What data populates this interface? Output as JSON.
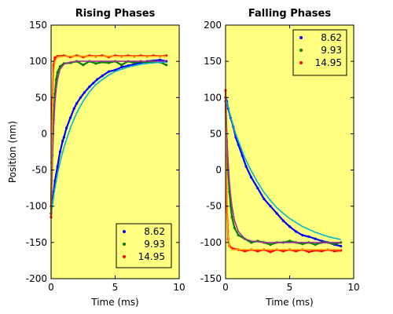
{
  "chart_data": [
    {
      "type": "line",
      "title": "Rising Phases",
      "xlabel": "Time (ms)",
      "ylabel": "Position (nm)",
      "xlim": [
        0,
        10
      ],
      "ylim": [
        -200,
        150
      ],
      "xticks": [
        0,
        5,
        10
      ],
      "yticks": [
        -200,
        -150,
        -100,
        -50,
        0,
        50,
        100,
        150
      ],
      "grid": false,
      "legend_position": "bottom-right",
      "background": "#ffff80",
      "series": [
        {
          "name": "8.62",
          "color": "#0000ff",
          "fit_color": "#00b8c8",
          "points": [
            [
              0,
              -110
            ],
            [
              0.1,
              -95
            ],
            [
              0.2,
              -80
            ],
            [
              0.3,
              -65
            ],
            [
              0.5,
              -45
            ],
            [
              0.7,
              -25
            ],
            [
              0.9,
              -10
            ],
            [
              1.0,
              -5
            ],
            [
              1.2,
              8
            ],
            [
              1.5,
              22
            ],
            [
              1.8,
              35
            ],
            [
              2.0,
              42
            ],
            [
              2.3,
              50
            ],
            [
              2.6,
              57
            ],
            [
              3.0,
              65
            ],
            [
              3.3,
              70
            ],
            [
              3.6,
              75
            ],
            [
              4.0,
              80
            ],
            [
              4.5,
              86
            ],
            [
              5.0,
              88
            ],
            [
              5.5,
              92
            ],
            [
              6.0,
              94
            ],
            [
              6.5,
              96
            ],
            [
              7.0,
              98
            ],
            [
              7.5,
              100
            ],
            [
              8.0,
              101
            ],
            [
              8.5,
              102
            ],
            [
              9.0,
              100
            ]
          ],
          "fit": [
            [
              0,
              -110
            ],
            [
              0.25,
              -80
            ],
            [
              0.5,
              -55
            ],
            [
              0.75,
              -36
            ],
            [
              1.0,
              -19
            ],
            [
              1.5,
              8
            ],
            [
              2.0,
              29
            ],
            [
              2.5,
              45
            ],
            [
              3.0,
              58
            ],
            [
              3.5,
              68
            ],
            [
              4.0,
              75
            ],
            [
              4.5,
              81
            ],
            [
              5.0,
              86
            ],
            [
              6.0,
              92
            ],
            [
              7.0,
              96
            ],
            [
              8.0,
              98
            ],
            [
              9.0,
              99
            ]
          ]
        },
        {
          "name": "9.93",
          "color": "#008000",
          "fit_color": "#a030a0",
          "points": [
            [
              0,
              -100
            ],
            [
              0.1,
              -30
            ],
            [
              0.2,
              20
            ],
            [
              0.3,
              55
            ],
            [
              0.4,
              75
            ],
            [
              0.5,
              85
            ],
            [
              0.7,
              93
            ],
            [
              1.0,
              97
            ],
            [
              1.5,
              98
            ],
            [
              2.0,
              100
            ],
            [
              2.5,
              95
            ],
            [
              3.0,
              100
            ],
            [
              3.5,
              97
            ],
            [
              4.0,
              99
            ],
            [
              4.5,
              98
            ],
            [
              5.0,
              100
            ],
            [
              5.5,
              95
            ],
            [
              6.0,
              100
            ],
            [
              6.5,
              98
            ],
            [
              7.0,
              100
            ],
            [
              7.5,
              98
            ],
            [
              8.0,
              100
            ],
            [
              8.5,
              99
            ],
            [
              9.0,
              95
            ]
          ],
          "fit": [
            [
              0,
              -100
            ],
            [
              0.1,
              -32
            ],
            [
              0.2,
              13
            ],
            [
              0.3,
              43
            ],
            [
              0.4,
              62
            ],
            [
              0.5,
              75
            ],
            [
              0.7,
              89
            ],
            [
              1.0,
              96
            ],
            [
              1.5,
              99
            ],
            [
              2.0,
              100
            ],
            [
              9.0,
              100
            ]
          ]
        },
        {
          "name": "14.95",
          "color": "#ff0000",
          "fit_color": "#ffa000",
          "points": [
            [
              0,
              -115
            ],
            [
              0.05,
              -40
            ],
            [
              0.1,
              40
            ],
            [
              0.2,
              95
            ],
            [
              0.3,
              105
            ],
            [
              0.5,
              107
            ],
            [
              1.0,
              108
            ],
            [
              1.5,
              106
            ],
            [
              2.0,
              108
            ],
            [
              2.5,
              106
            ],
            [
              3.0,
              108
            ],
            [
              3.5,
              107
            ],
            [
              4.0,
              108
            ],
            [
              4.5,
              106
            ],
            [
              5.0,
              108
            ],
            [
              5.5,
              107
            ],
            [
              6.0,
              108
            ],
            [
              6.5,
              107
            ],
            [
              7.0,
              108
            ],
            [
              7.5,
              107
            ],
            [
              8.0,
              108
            ],
            [
              8.5,
              107
            ],
            [
              9.0,
              108
            ]
          ],
          "fit": [
            [
              0,
              -115
            ],
            [
              0.05,
              -25
            ],
            [
              0.1,
              30
            ],
            [
              0.15,
              64
            ],
            [
              0.2,
              84
            ],
            [
              0.3,
              100
            ],
            [
              0.5,
              106
            ],
            [
              1.0,
              107
            ],
            [
              9.0,
              107
            ]
          ]
        }
      ]
    },
    {
      "type": "line",
      "title": "Falling Phases",
      "xlabel": "Time (ms)",
      "ylabel": "",
      "xlim": [
        0,
        10
      ],
      "ylim": [
        -150,
        200
      ],
      "xticks": [
        0,
        5,
        10
      ],
      "yticks": [
        -150,
        -100,
        -50,
        0,
        50,
        100,
        150,
        200
      ],
      "grid": false,
      "legend_position": "top-right",
      "background": "#ffff80",
      "series": [
        {
          "name": "8.62",
          "color": "#0000ff",
          "fit_color": "#00b8c8",
          "points": [
            [
              0,
              100
            ],
            [
              0.1,
              95
            ],
            [
              0.2,
              85
            ],
            [
              0.4,
              72
            ],
            [
              0.6,
              60
            ],
            [
              0.8,
              45
            ],
            [
              1.0,
              35
            ],
            [
              1.3,
              20
            ],
            [
              1.6,
              5
            ],
            [
              2.0,
              -10
            ],
            [
              2.5,
              -25
            ],
            [
              3.0,
              -40
            ],
            [
              3.5,
              -50
            ],
            [
              4.0,
              -60
            ],
            [
              4.5,
              -70
            ],
            [
              5.0,
              -78
            ],
            [
              5.5,
              -85
            ],
            [
              6.0,
              -90
            ],
            [
              6.5,
              -92
            ],
            [
              7.0,
              -95
            ],
            [
              7.5,
              -98
            ],
            [
              8.0,
              -100
            ],
            [
              8.5,
              -103
            ],
            [
              9.0,
              -105
            ]
          ],
          "fit": [
            [
              0,
              100
            ],
            [
              0.25,
              83
            ],
            [
              0.5,
              67
            ],
            [
              0.75,
              52
            ],
            [
              1.0,
              40
            ],
            [
              1.5,
              17
            ],
            [
              2.0,
              -1
            ],
            [
              2.5,
              -17
            ],
            [
              3.0,
              -31
            ],
            [
              3.5,
              -42
            ],
            [
              4.0,
              -52
            ],
            [
              4.5,
              -60
            ],
            [
              5.0,
              -67
            ],
            [
              6.0,
              -78
            ],
            [
              7.0,
              -86
            ],
            [
              8.0,
              -92
            ],
            [
              9.0,
              -96
            ]
          ]
        },
        {
          "name": "9.93",
          "color": "#008000",
          "fit_color": "#a030a0",
          "points": [
            [
              0,
              95
            ],
            [
              0.1,
              40
            ],
            [
              0.2,
              0
            ],
            [
              0.3,
              -30
            ],
            [
              0.4,
              -50
            ],
            [
              0.5,
              -65
            ],
            [
              0.7,
              -80
            ],
            [
              1.0,
              -90
            ],
            [
              1.5,
              -95
            ],
            [
              2.0,
              -100
            ],
            [
              2.5,
              -98
            ],
            [
              3.0,
              -100
            ],
            [
              3.5,
              -103
            ],
            [
              4.0,
              -100
            ],
            [
              4.5,
              -100
            ],
            [
              5.0,
              -98
            ],
            [
              5.5,
              -100
            ],
            [
              6.0,
              -102
            ],
            [
              6.5,
              -100
            ],
            [
              7.0,
              -103
            ],
            [
              7.5,
              -100
            ],
            [
              8.0,
              -100
            ],
            [
              8.5,
              -102
            ],
            [
              9.0,
              -100
            ]
          ],
          "fit": [
            [
              0,
              95
            ],
            [
              0.1,
              45
            ],
            [
              0.2,
              9
            ],
            [
              0.3,
              -17
            ],
            [
              0.4,
              -36
            ],
            [
              0.5,
              -50
            ],
            [
              0.7,
              -70
            ],
            [
              1.0,
              -85
            ],
            [
              1.5,
              -95
            ],
            [
              2.0,
              -98
            ],
            [
              3.0,
              -100
            ],
            [
              9.0,
              -100
            ]
          ]
        },
        {
          "name": "14.95",
          "color": "#ff0000",
          "fit_color": "#ffa000",
          "points": [
            [
              0,
              110
            ],
            [
              0.05,
              20
            ],
            [
              0.1,
              -50
            ],
            [
              0.2,
              -95
            ],
            [
              0.3,
              -105
            ],
            [
              0.5,
              -108
            ],
            [
              1.0,
              -110
            ],
            [
              1.5,
              -112
            ],
            [
              2.0,
              -110
            ],
            [
              2.5,
              -112
            ],
            [
              3.0,
              -110
            ],
            [
              3.5,
              -113
            ],
            [
              4.0,
              -110
            ],
            [
              4.5,
              -112
            ],
            [
              5.0,
              -110
            ],
            [
              5.5,
              -112
            ],
            [
              6.0,
              -110
            ],
            [
              6.5,
              -113
            ],
            [
              7.0,
              -111
            ],
            [
              7.5,
              -112
            ],
            [
              8.0,
              -110
            ],
            [
              8.5,
              -112
            ],
            [
              9.0,
              -111
            ]
          ],
          "fit": [
            [
              0,
              110
            ],
            [
              0.05,
              15
            ],
            [
              0.1,
              -42
            ],
            [
              0.15,
              -75
            ],
            [
              0.2,
              -94
            ],
            [
              0.3,
              -106
            ],
            [
              0.5,
              -110
            ],
            [
              1.0,
              -110
            ],
            [
              9.0,
              -110
            ]
          ]
        }
      ]
    }
  ]
}
